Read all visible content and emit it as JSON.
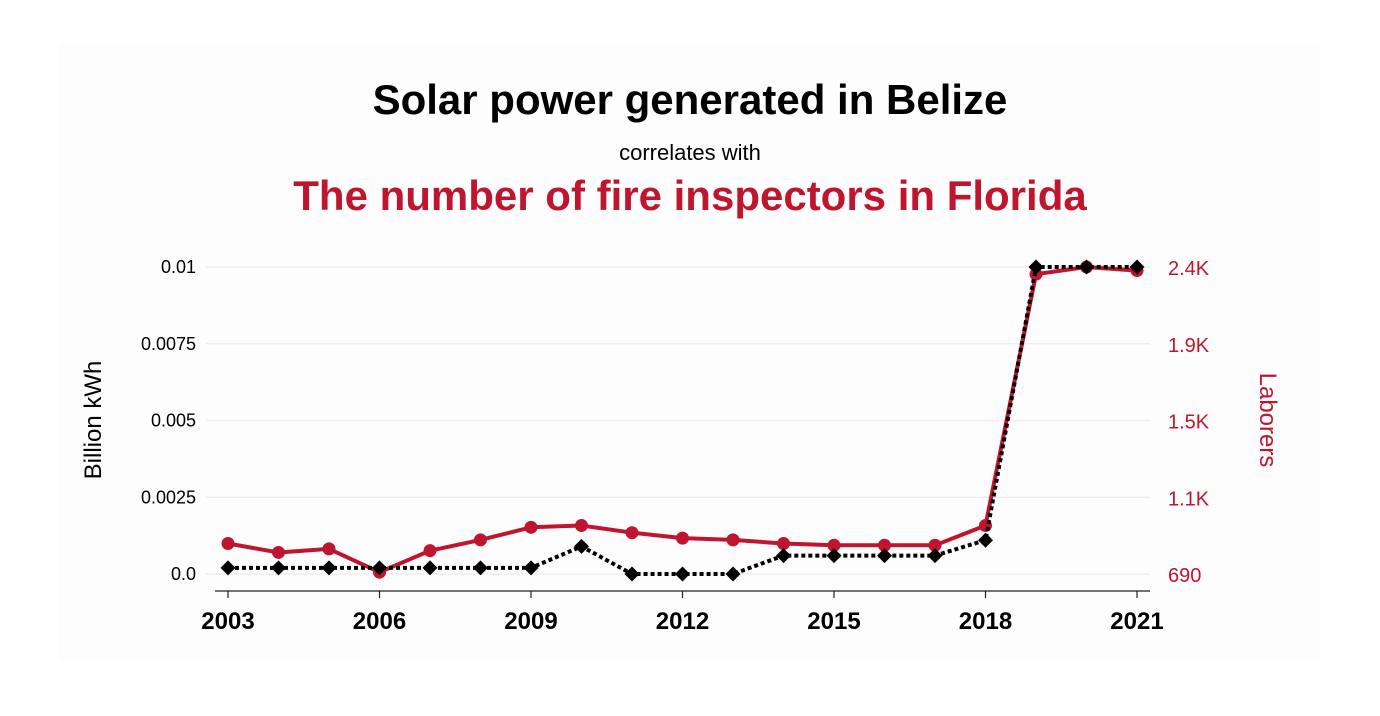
{
  "chart_data": {
    "type": "line",
    "title": "Solar power generated in Belize",
    "subtitle": "correlates with",
    "title2": "The number of fire inspectors in Florida",
    "x": [
      2003,
      2004,
      2005,
      2006,
      2007,
      2008,
      2009,
      2010,
      2011,
      2012,
      2013,
      2014,
      2015,
      2016,
      2017,
      2018,
      2019,
      2020,
      2021
    ],
    "xticks": [
      "2003",
      "2006",
      "2009",
      "2012",
      "2015",
      "2018",
      "2021"
    ],
    "ylabel_left": "Billion kWh",
    "ylabel_right": "Laborers",
    "ylim_left": [
      0,
      0.01
    ],
    "ylim_right": [
      690,
      2400
    ],
    "yticks_left": [
      "0.0",
      "0.0025",
      "0.005",
      "0.0075",
      "0.01"
    ],
    "yticks_right": [
      "690",
      "1.1K",
      "1.5K",
      "1.9K",
      "2.4K"
    ],
    "grid": true,
    "series": [
      {
        "name": "Solar power generated in Belize",
        "axis": "left",
        "color": "#000000",
        "style": "dotted-diamond",
        "values": [
          0.0002,
          0.0002,
          0.0002,
          0.0002,
          0.0002,
          0.0002,
          0.0002,
          0.0009,
          0.0,
          0.0,
          0.0,
          0.0006,
          0.0006,
          0.0006,
          0.0006,
          0.0011,
          0.01,
          0.01,
          0.01
        ]
      },
      {
        "name": "The number of fire inspectors in Florida",
        "axis": "right",
        "color": "#c0152f",
        "style": "solid-circle",
        "values": [
          860,
          810,
          830,
          700,
          820,
          880,
          950,
          960,
          920,
          890,
          880,
          860,
          850,
          850,
          850,
          960,
          2360,
          2400,
          2380
        ]
      }
    ]
  }
}
